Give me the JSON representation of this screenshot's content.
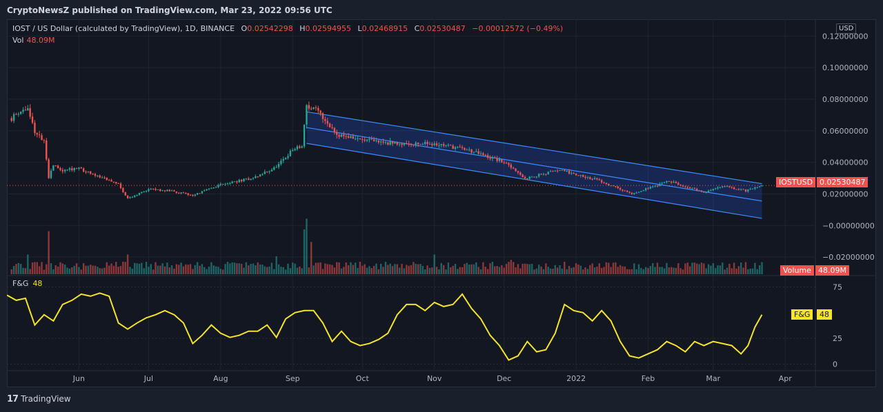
{
  "header": {
    "published": "CryptoNewsZ published on TradingView.com, Mar 23, 2022 09:56 UTC"
  },
  "legend": {
    "symbol": "IOST / US Dollar (calculated by TradingView), 1D, BINANCE",
    "o_key": "O",
    "o_val": "0.02542298",
    "h_key": "H",
    "h_val": "0.02594955",
    "l_key": "L",
    "l_val": "0.02468915",
    "c_key": "C",
    "c_val": "0.02530487",
    "change": "−0.00012572 (−0.49%)",
    "vol_key": "Vol",
    "vol_val": "48.09M",
    "fg_key": "F&G",
    "fg_val": "48"
  },
  "currency_button": "USD",
  "tags": {
    "price_symbol": "IOSTUSD",
    "price_value": "0.02530487",
    "volume_label": "Volume",
    "volume_value": "48.09M",
    "fg_label": "F&G",
    "fg_value": "48"
  },
  "footer": {
    "brand": "TradingView"
  },
  "colors": {
    "up": "#26a69a",
    "down": "#ef5350",
    "fg_line": "#f5e42c",
    "channel": "#2962ff",
    "price_line": "#ef5350"
  },
  "chart_data": {
    "type": "candlestick",
    "x_axis": {
      "labels": [
        "Jun",
        "Jul",
        "Aug",
        "Sep",
        "Oct",
        "Nov",
        "Dec",
        "2022",
        "Feb",
        "Mar",
        "Apr"
      ]
    },
    "price_axis": {
      "tick_labels": [
        "0.12000000",
        "0.10000000",
        "0.08000000",
        "0.06000000",
        "0.04000000",
        "0.02000000",
        "−0.00000000",
        "−0.02000000"
      ],
      "ticks": [
        0.12,
        0.1,
        0.08,
        0.06,
        0.04,
        0.02,
        0.0,
        -0.02
      ],
      "range": [
        -0.03,
        0.128
      ]
    },
    "fg_axis": {
      "tick_labels": [
        "75",
        "25",
        "0"
      ],
      "ticks": [
        75,
        25,
        0
      ],
      "range": [
        -5,
        82
      ]
    },
    "last_price": 0.02530487,
    "price_anchors": [
      {
        "date": "2021-05-03",
        "close": 0.068
      },
      {
        "date": "2021-05-06",
        "close": 0.072
      },
      {
        "date": "2021-05-10",
        "close": 0.074
      },
      {
        "date": "2021-05-13",
        "close": 0.06
      },
      {
        "date": "2021-05-17",
        "close": 0.053
      },
      {
        "date": "2021-05-19",
        "close": 0.03
      },
      {
        "date": "2021-05-21",
        "close": 0.038
      },
      {
        "date": "2021-05-25",
        "close": 0.035
      },
      {
        "date": "2021-06-01",
        "close": 0.036
      },
      {
        "date": "2021-06-10",
        "close": 0.031
      },
      {
        "date": "2021-06-18",
        "close": 0.026
      },
      {
        "date": "2021-06-22",
        "close": 0.017
      },
      {
        "date": "2021-07-01",
        "close": 0.023
      },
      {
        "date": "2021-07-10",
        "close": 0.022
      },
      {
        "date": "2021-07-20",
        "close": 0.019
      },
      {
        "date": "2021-08-01",
        "close": 0.026
      },
      {
        "date": "2021-08-15",
        "close": 0.03
      },
      {
        "date": "2021-08-25",
        "close": 0.037
      },
      {
        "date": "2021-09-01",
        "close": 0.048
      },
      {
        "date": "2021-09-05",
        "close": 0.05
      },
      {
        "date": "2021-09-07",
        "close": 0.076
      },
      {
        "date": "2021-09-12",
        "close": 0.072
      },
      {
        "date": "2021-09-20",
        "close": 0.058
      },
      {
        "date": "2021-10-01",
        "close": 0.054
      },
      {
        "date": "2021-10-15",
        "close": 0.052
      },
      {
        "date": "2021-11-01",
        "close": 0.052
      },
      {
        "date": "2021-11-15",
        "close": 0.048
      },
      {
        "date": "2021-12-01",
        "close": 0.04
      },
      {
        "date": "2021-12-10",
        "close": 0.03
      },
      {
        "date": "2021-12-25",
        "close": 0.035
      },
      {
        "date": "2022-01-10",
        "close": 0.029
      },
      {
        "date": "2022-01-25",
        "close": 0.02
      },
      {
        "date": "2022-02-10",
        "close": 0.028
      },
      {
        "date": "2022-02-25",
        "close": 0.021
      },
      {
        "date": "2022-03-05",
        "close": 0.025
      },
      {
        "date": "2022-03-15",
        "close": 0.022
      },
      {
        "date": "2022-03-22",
        "close": 0.0253
      }
    ],
    "volume_spikes": [
      {
        "date": "2021-05-19",
        "value": 2.4
      },
      {
        "date": "2021-05-10",
        "value": 1.1
      },
      {
        "date": "2021-06-22",
        "value": 1.1
      },
      {
        "date": "2021-08-25",
        "value": 1.0
      },
      {
        "date": "2021-09-06",
        "value": 2.5
      },
      {
        "date": "2021-09-07",
        "value": 3.1
      },
      {
        "date": "2021-09-09",
        "value": 1.8
      },
      {
        "date": "2021-11-01",
        "value": 1.1
      },
      {
        "date": "2021-12-04",
        "value": 0.8
      },
      {
        "date": "2022-03-21",
        "value": 0.5
      }
    ],
    "channel": {
      "upper": [
        {
          "date": "2021-09-07",
          "price": 0.072
        },
        {
          "date": "2022-03-22",
          "price": 0.0265
        }
      ],
      "middle": [
        {
          "date": "2021-09-07",
          "price": 0.062
        },
        {
          "date": "2022-03-22",
          "price": 0.0155
        }
      ],
      "lower": [
        {
          "date": "2021-09-07",
          "price": 0.052
        },
        {
          "date": "2022-03-22",
          "price": 0.0045
        }
      ]
    },
    "fg_series": [
      {
        "date": "2021-05-01",
        "value": 67
      },
      {
        "date": "2021-05-05",
        "value": 62
      },
      {
        "date": "2021-05-09",
        "value": 64
      },
      {
        "date": "2021-05-13",
        "value": 38
      },
      {
        "date": "2021-05-17",
        "value": 48
      },
      {
        "date": "2021-05-21",
        "value": 42
      },
      {
        "date": "2021-05-25",
        "value": 58
      },
      {
        "date": "2021-05-29",
        "value": 62
      },
      {
        "date": "2021-06-02",
        "value": 68
      },
      {
        "date": "2021-06-06",
        "value": 66
      },
      {
        "date": "2021-06-10",
        "value": 69
      },
      {
        "date": "2021-06-14",
        "value": 66
      },
      {
        "date": "2021-06-18",
        "value": 40
      },
      {
        "date": "2021-06-22",
        "value": 34
      },
      {
        "date": "2021-06-26",
        "value": 40
      },
      {
        "date": "2021-06-30",
        "value": 45
      },
      {
        "date": "2021-07-04",
        "value": 48
      },
      {
        "date": "2021-07-08",
        "value": 52
      },
      {
        "date": "2021-07-12",
        "value": 48
      },
      {
        "date": "2021-07-16",
        "value": 40
      },
      {
        "date": "2021-07-20",
        "value": 20
      },
      {
        "date": "2021-07-24",
        "value": 28
      },
      {
        "date": "2021-07-28",
        "value": 38
      },
      {
        "date": "2021-08-01",
        "value": 30
      },
      {
        "date": "2021-08-05",
        "value": 26
      },
      {
        "date": "2021-08-09",
        "value": 28
      },
      {
        "date": "2021-08-13",
        "value": 32
      },
      {
        "date": "2021-08-17",
        "value": 32
      },
      {
        "date": "2021-08-21",
        "value": 38
      },
      {
        "date": "2021-08-25",
        "value": 26
      },
      {
        "date": "2021-08-29",
        "value": 44
      },
      {
        "date": "2021-09-02",
        "value": 50
      },
      {
        "date": "2021-09-06",
        "value": 52
      },
      {
        "date": "2021-09-10",
        "value": 52
      },
      {
        "date": "2021-09-14",
        "value": 40
      },
      {
        "date": "2021-09-18",
        "value": 22
      },
      {
        "date": "2021-09-22",
        "value": 32
      },
      {
        "date": "2021-09-26",
        "value": 22
      },
      {
        "date": "2021-09-30",
        "value": 18
      },
      {
        "date": "2021-10-04",
        "value": 20
      },
      {
        "date": "2021-10-08",
        "value": 24
      },
      {
        "date": "2021-10-12",
        "value": 30
      },
      {
        "date": "2021-10-16",
        "value": 48
      },
      {
        "date": "2021-10-20",
        "value": 58
      },
      {
        "date": "2021-10-24",
        "value": 58
      },
      {
        "date": "2021-10-28",
        "value": 52
      },
      {
        "date": "2021-11-01",
        "value": 60
      },
      {
        "date": "2021-11-05",
        "value": 56
      },
      {
        "date": "2021-11-09",
        "value": 58
      },
      {
        "date": "2021-11-13",
        "value": 68
      },
      {
        "date": "2021-11-17",
        "value": 54
      },
      {
        "date": "2021-11-21",
        "value": 44
      },
      {
        "date": "2021-11-25",
        "value": 28
      },
      {
        "date": "2021-11-29",
        "value": 18
      },
      {
        "date": "2021-12-03",
        "value": 4
      },
      {
        "date": "2021-12-07",
        "value": 8
      },
      {
        "date": "2021-12-11",
        "value": 22
      },
      {
        "date": "2021-12-15",
        "value": 12
      },
      {
        "date": "2021-12-19",
        "value": 14
      },
      {
        "date": "2021-12-23",
        "value": 30
      },
      {
        "date": "2021-12-27",
        "value": 58
      },
      {
        "date": "2021-12-31",
        "value": 52
      },
      {
        "date": "2022-01-04",
        "value": 50
      },
      {
        "date": "2022-01-08",
        "value": 42
      },
      {
        "date": "2022-01-12",
        "value": 52
      },
      {
        "date": "2022-01-16",
        "value": 42
      },
      {
        "date": "2022-01-20",
        "value": 22
      },
      {
        "date": "2022-01-24",
        "value": 8
      },
      {
        "date": "2022-01-28",
        "value": 6
      },
      {
        "date": "2022-02-01",
        "value": 10
      },
      {
        "date": "2022-02-05",
        "value": 14
      },
      {
        "date": "2022-02-09",
        "value": 22
      },
      {
        "date": "2022-02-13",
        "value": 18
      },
      {
        "date": "2022-02-17",
        "value": 12
      },
      {
        "date": "2022-02-21",
        "value": 22
      },
      {
        "date": "2022-02-25",
        "value": 18
      },
      {
        "date": "2022-03-01",
        "value": 22
      },
      {
        "date": "2022-03-05",
        "value": 20
      },
      {
        "date": "2022-03-09",
        "value": 18
      },
      {
        "date": "2022-03-13",
        "value": 10
      },
      {
        "date": "2022-03-16",
        "value": 18
      },
      {
        "date": "2022-03-19",
        "value": 36
      },
      {
        "date": "2022-03-22",
        "value": 48
      }
    ]
  }
}
